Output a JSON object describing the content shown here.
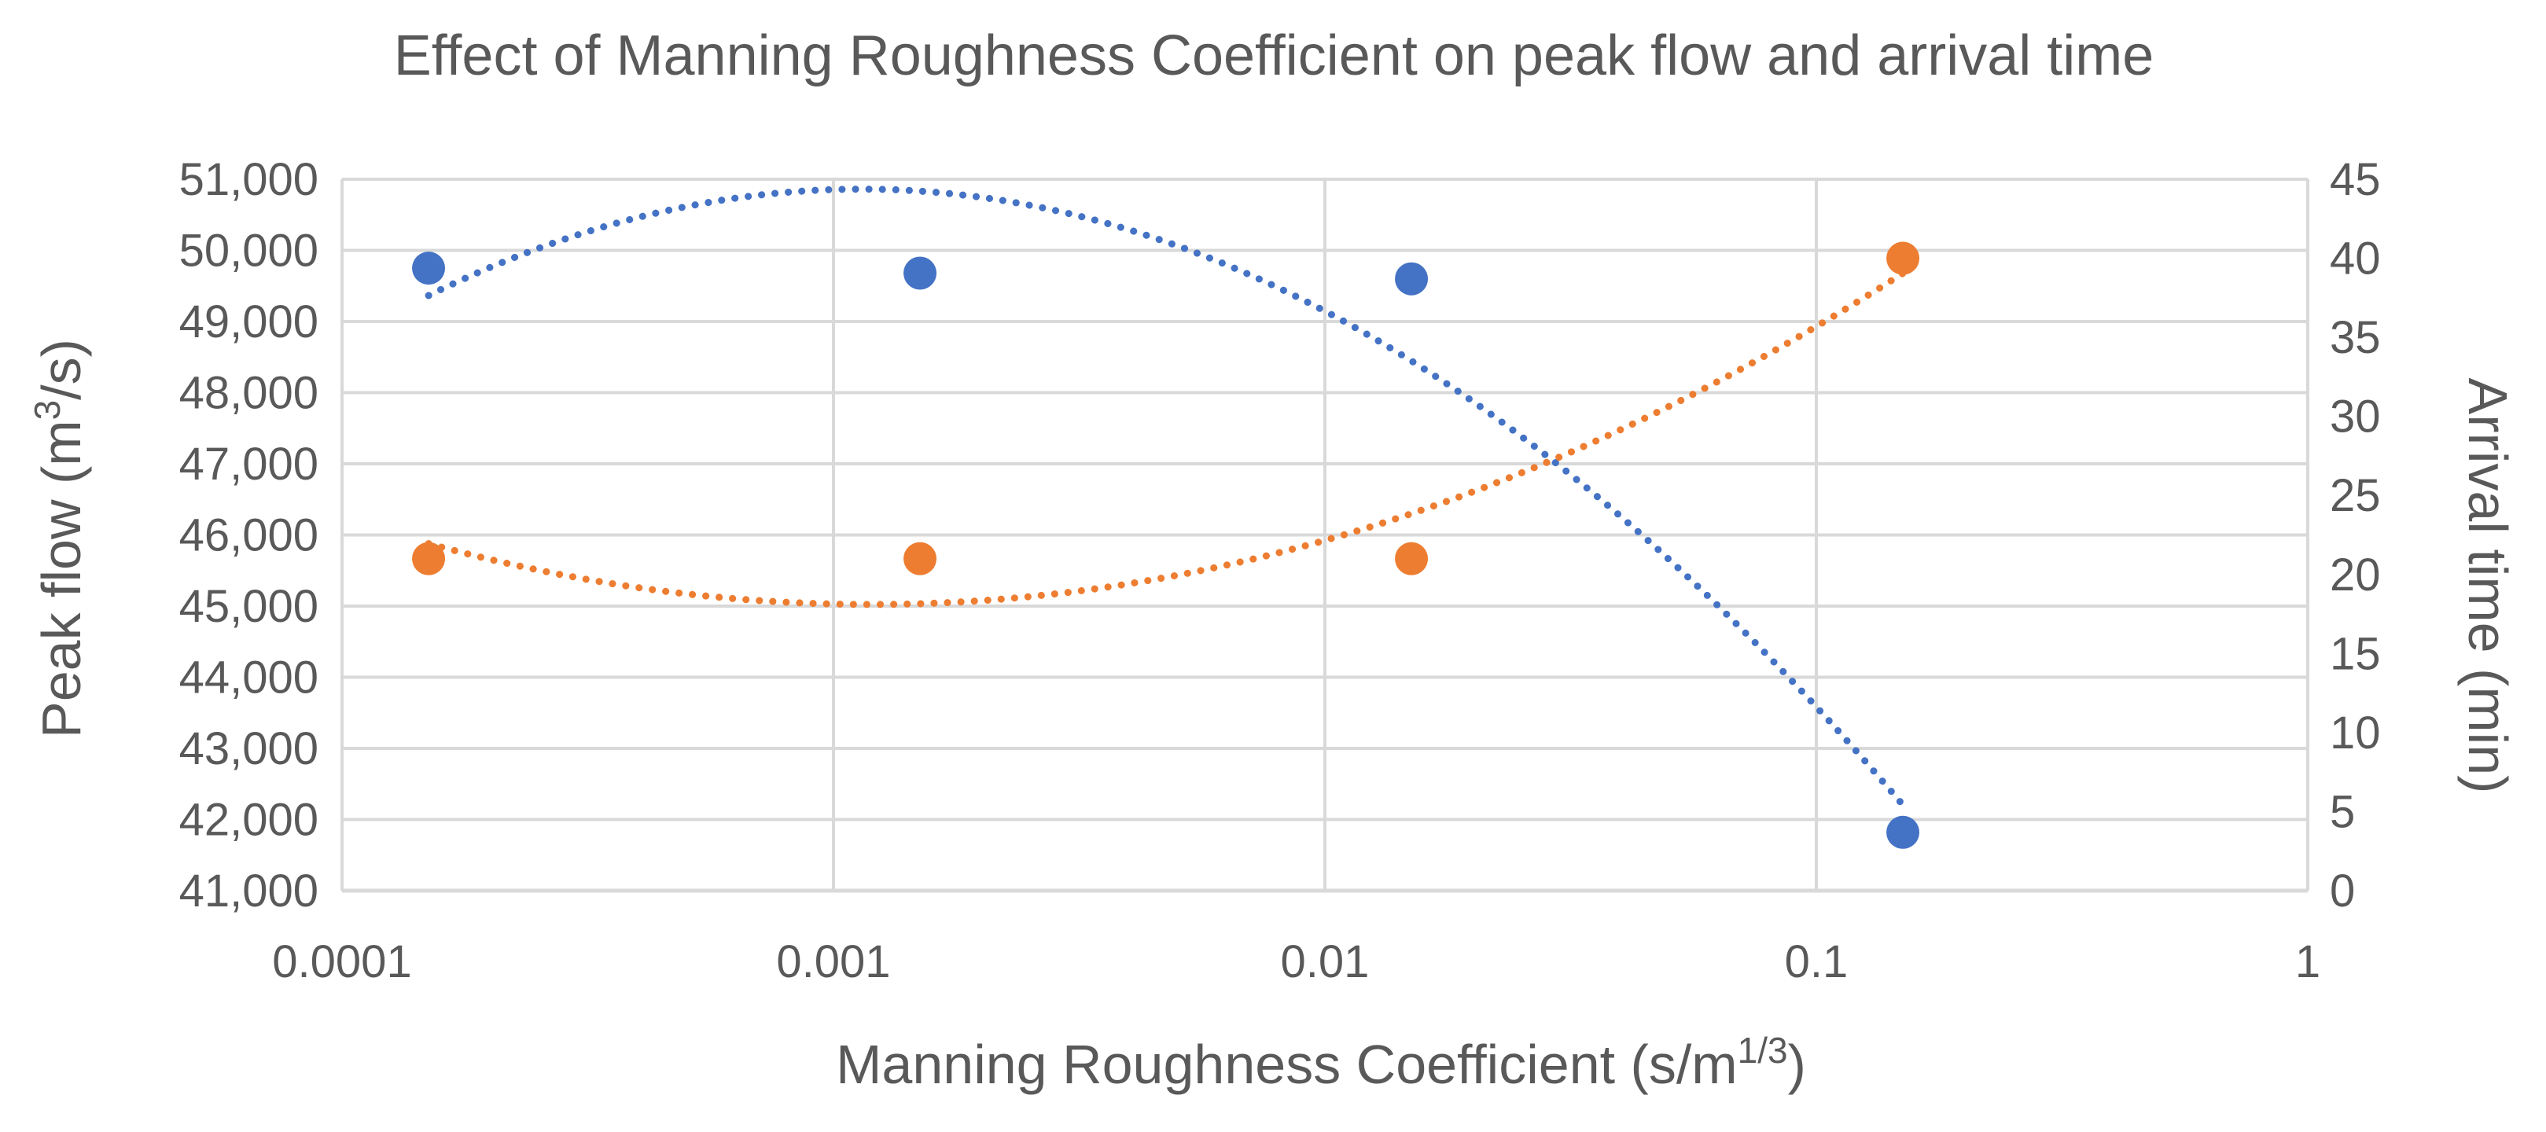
{
  "chart_data": {
    "type": "scatter",
    "title": "Effect of Manning Roughness Coefficient on peak flow and arrival time",
    "xlabel": {
      "base": "Manning Roughness Coefficient (s/m",
      "sup": "1/3",
      "close": ")"
    },
    "ylabel_left": {
      "base": "Peak flow (m",
      "sup": "3",
      "close": "/s)"
    },
    "ylabel_right": "Arrival time (min)",
    "x_scale": "log",
    "xlim": [
      0.0001,
      1
    ],
    "x_ticks": [
      0.0001,
      0.001,
      0.01,
      0.1,
      1
    ],
    "x_tick_labels": [
      "0.0001",
      "0.001",
      "0.01",
      "0.1",
      "1"
    ],
    "ylim_left": [
      41000,
      51000
    ],
    "y_left_ticks": [
      41000,
      42000,
      43000,
      44000,
      45000,
      46000,
      47000,
      48000,
      49000,
      50000,
      51000
    ],
    "y_left_tick_labels": [
      "41,000",
      "42,000",
      "43,000",
      "44,000",
      "45,000",
      "46,000",
      "47,000",
      "48,000",
      "49,000",
      "50,000",
      "51,000"
    ],
    "ylim_right": [
      0,
      45
    ],
    "y_right_ticks": [
      0,
      5,
      10,
      15,
      20,
      25,
      30,
      35,
      40,
      45
    ],
    "y_right_tick_labels": [
      "0",
      "5",
      "10",
      "15",
      "20",
      "25",
      "30",
      "35",
      "40",
      "45"
    ],
    "grid": true,
    "legend": "none",
    "series": [
      {
        "name": "Peak flow",
        "axis": "left",
        "color": "#4472C4",
        "x": [
          0.00015,
          0.0015,
          0.015,
          0.15
        ],
        "y": [
          49750,
          49680,
          49600,
          41820
        ],
        "trendline": "polynomial"
      },
      {
        "name": "Arrival time",
        "axis": "right",
        "color": "#ED7D31",
        "x": [
          0.00015,
          0.0015,
          0.015,
          0.15
        ],
        "y": [
          21,
          21,
          21,
          40
        ],
        "trendline": "polynomial"
      }
    ]
  }
}
